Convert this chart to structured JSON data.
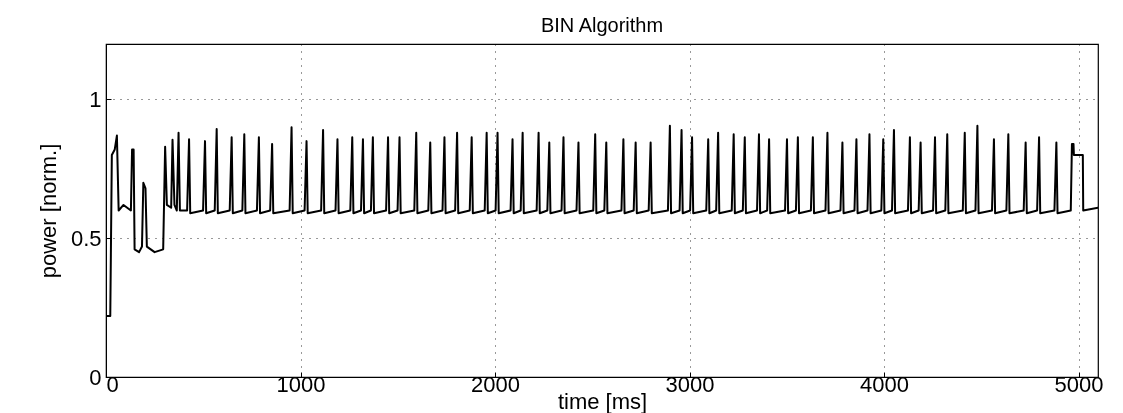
{
  "chart_data": {
    "type": "line",
    "title": "BIN Algorithm",
    "xlabel": "time [ms]",
    "ylabel": "power [norm.]",
    "xlim": [
      0,
      5100
    ],
    "xticks": [
      0,
      1000,
      2000,
      3000,
      4000,
      5000
    ],
    "ylim": [
      0,
      1.2
    ],
    "yticks": [
      0,
      0.5,
      1
    ],
    "grid": true,
    "marker": "none",
    "line_style": "solid",
    "series": [
      {
        "color": "#000000",
        "x": [
          0,
          22,
          30,
          45,
          56,
          65,
          90,
          128,
          134,
          142,
          147,
          170,
          185,
          192,
          203,
          210,
          250,
          294,
          304,
          313,
          335,
          342,
          352,
          364,
          373,
          380,
          417,
          427,
          433,
          499,
          509,
          515,
          559,
          569,
          575,
          636,
          646,
          652,
          701,
          711,
          717,
          776,
          786,
          792,
          844,
          854,
          860,
          944,
          954,
          960,
          1021,
          1031,
          1037,
          1106,
          1116,
          1122,
          1180,
          1190,
          1196,
          1256,
          1266,
          1272,
          1311,
          1321,
          1327,
          1362,
          1372,
          1378,
          1440,
          1450,
          1456,
          1499,
          1509,
          1515,
          1585,
          1595,
          1601,
          1657,
          1667,
          1673,
          1730,
          1740,
          1746,
          1795,
          1805,
          1811,
          1870,
          1880,
          1886,
          1947,
          1957,
          1963,
          2003,
          2013,
          2019,
          2080,
          2090,
          2096,
          2132,
          2142,
          2148,
          2214,
          2224,
          2230,
          2269,
          2279,
          2285,
          2342,
          2352,
          2358,
          2419,
          2429,
          2435,
          2505,
          2515,
          2521,
          2562,
          2572,
          2578,
          2650,
          2660,
          2666,
          2713,
          2723,
          2729,
          2790,
          2800,
          2806,
          2889,
          2899,
          2905,
          2949,
          2959,
          2965,
          3003,
          3013,
          3019,
          3086,
          3096,
          3102,
          3137,
          3147,
          3153,
          3217,
          3227,
          3233,
          3274,
          3284,
          3290,
          3347,
          3357,
          3363,
          3399,
          3409,
          3415,
          3491,
          3501,
          3507,
          3547,
          3557,
          3563,
          3624,
          3634,
          3640,
          3699,
          3709,
          3715,
          3776,
          3786,
          3792,
          3848,
          3858,
          3864,
          3915,
          3925,
          3931,
          3986,
          3996,
          4002,
          4041,
          4051,
          4057,
          4123,
          4133,
          4139,
          4178,
          4188,
          4194,
          4252,
          4262,
          4268,
          4315,
          4325,
          4331,
          4405,
          4415,
          4421,
          4470,
          4480,
          4486,
          4555,
          4565,
          4571,
          4629,
          4639,
          4645,
          4718,
          4728,
          4734,
          4787,
          4797,
          4803,
          4876,
          4886,
          4892,
          4960,
          4966,
          4974,
          4976,
          5022,
          5024,
          5100
        ],
        "values": [
          0.22,
          0.22,
          0.8,
          0.82,
          0.87,
          0.6,
          0.62,
          0.6,
          0.82,
          0.82,
          0.46,
          0.45,
          0.47,
          0.7,
          0.68,
          0.47,
          0.45,
          0.46,
          0.83,
          0.62,
          0.61,
          0.855,
          0.62,
          0.6,
          0.88,
          0.6,
          0.6,
          0.857,
          0.59,
          0.6,
          0.85,
          0.59,
          0.6,
          0.894,
          0.59,
          0.6,
          0.864,
          0.59,
          0.6,
          0.875,
          0.59,
          0.6,
          0.864,
          0.59,
          0.6,
          0.84,
          0.59,
          0.6,
          0.9,
          0.59,
          0.6,
          0.85,
          0.59,
          0.6,
          0.89,
          0.59,
          0.6,
          0.857,
          0.59,
          0.6,
          0.864,
          0.59,
          0.6,
          0.857,
          0.59,
          0.6,
          0.864,
          0.59,
          0.6,
          0.864,
          0.59,
          0.6,
          0.864,
          0.59,
          0.6,
          0.88,
          0.59,
          0.6,
          0.845,
          0.59,
          0.6,
          0.864,
          0.59,
          0.6,
          0.88,
          0.59,
          0.6,
          0.864,
          0.59,
          0.6,
          0.88,
          0.59,
          0.6,
          0.88,
          0.59,
          0.6,
          0.857,
          0.59,
          0.6,
          0.88,
          0.59,
          0.6,
          0.88,
          0.59,
          0.6,
          0.845,
          0.59,
          0.6,
          0.864,
          0.59,
          0.6,
          0.845,
          0.59,
          0.6,
          0.875,
          0.59,
          0.6,
          0.845,
          0.59,
          0.6,
          0.857,
          0.59,
          0.6,
          0.845,
          0.59,
          0.6,
          0.845,
          0.59,
          0.6,
          0.905,
          0.59,
          0.6,
          0.89,
          0.59,
          0.6,
          0.864,
          0.59,
          0.6,
          0.857,
          0.59,
          0.6,
          0.88,
          0.59,
          0.6,
          0.875,
          0.59,
          0.6,
          0.864,
          0.59,
          0.6,
          0.875,
          0.59,
          0.6,
          0.857,
          0.59,
          0.6,
          0.857,
          0.59,
          0.6,
          0.864,
          0.59,
          0.6,
          0.864,
          0.59,
          0.6,
          0.88,
          0.59,
          0.6,
          0.845,
          0.59,
          0.6,
          0.857,
          0.59,
          0.6,
          0.875,
          0.59,
          0.6,
          0.857,
          0.59,
          0.6,
          0.89,
          0.59,
          0.6,
          0.864,
          0.59,
          0.6,
          0.845,
          0.59,
          0.6,
          0.864,
          0.59,
          0.6,
          0.875,
          0.59,
          0.6,
          0.88,
          0.59,
          0.6,
          0.905,
          0.59,
          0.6,
          0.857,
          0.59,
          0.6,
          0.875,
          0.59,
          0.6,
          0.845,
          0.59,
          0.6,
          0.864,
          0.59,
          0.6,
          0.845,
          0.59,
          0.6,
          0.84,
          0.84,
          0.8,
          0.8,
          0.6,
          0.61
        ]
      }
    ]
  }
}
